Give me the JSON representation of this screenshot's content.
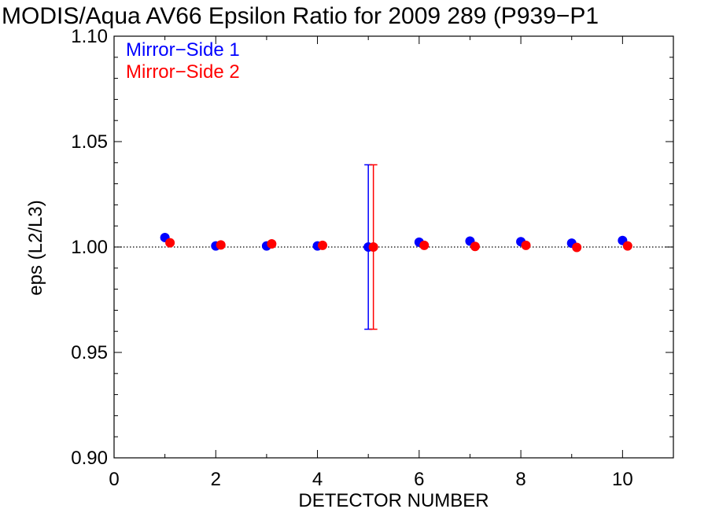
{
  "title": "MODIS/Aqua AV66 Epsilon Ratio for 2009 289 (P939−P1",
  "chart_data": {
    "type": "scatter",
    "title": "MODIS/Aqua AV66 Epsilon Ratio for 2009 289 (P939−P1",
    "xlabel": "DETECTOR NUMBER",
    "ylabel": "eps (L2/L3)",
    "xlim": [
      0,
      11
    ],
    "ylim": [
      0.9,
      1.1
    ],
    "xticks": [
      0,
      2,
      4,
      6,
      8,
      10
    ],
    "xtick_labels": [
      "0",
      "2",
      "4",
      "6",
      "8",
      "10"
    ],
    "yticks": [
      0.9,
      0.95,
      1.0,
      1.05,
      1.1
    ],
    "ytick_labels": [
      "0.90",
      "0.95",
      "1.00",
      "1.05",
      "1.10"
    ],
    "reference_line": 1.0,
    "legend_position": "top-left",
    "series": [
      {
        "name": "Mirror−Side 1",
        "color": "#0000ff",
        "x": [
          1,
          2,
          3,
          4,
          5,
          6,
          7,
          8,
          9,
          10
        ],
        "y": [
          1.0045,
          1.0005,
          1.0005,
          1.0005,
          1.0,
          1.0023,
          1.0028,
          1.0025,
          1.0018,
          1.0031
        ],
        "error_bars": [
          {
            "x": 5,
            "low": 0.961,
            "high": 1.039
          }
        ]
      },
      {
        "name": "Mirror−Side 2",
        "color": "#ff0000",
        "x": [
          1.1,
          2.1,
          3.1,
          4.1,
          5.1,
          6.1,
          7.1,
          8.1,
          9.1,
          10.1
        ],
        "y": [
          1.002,
          1.001,
          1.0015,
          1.0008,
          1.0,
          1.0008,
          1.0003,
          1.0008,
          0.9998,
          1.0005
        ],
        "error_bars": [
          {
            "x": 5.1,
            "low": 0.961,
            "high": 1.039
          }
        ]
      }
    ]
  }
}
